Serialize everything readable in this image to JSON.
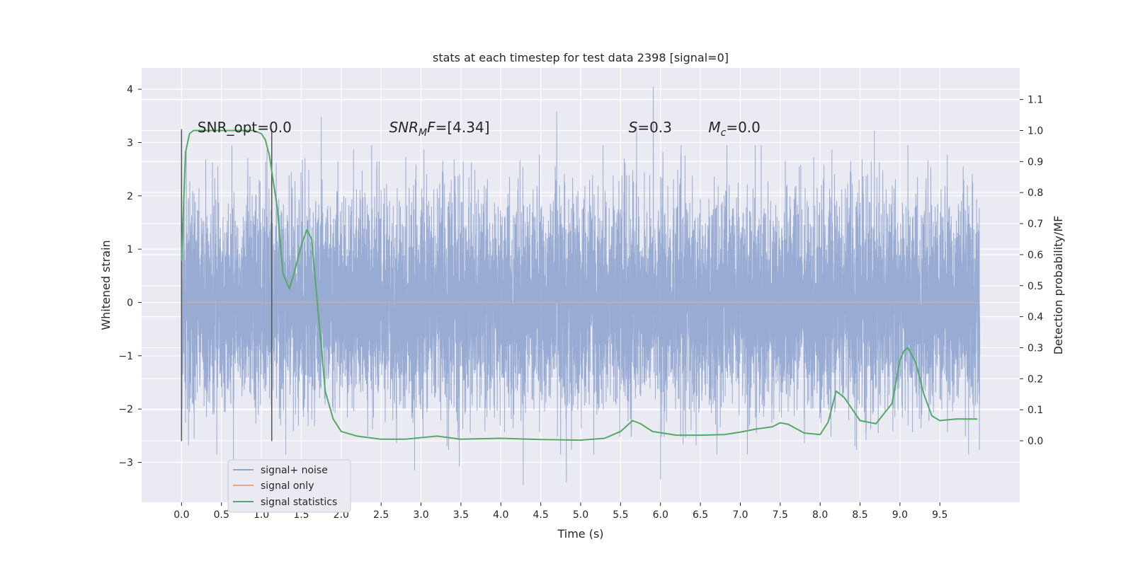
{
  "chart_data": {
    "type": "line",
    "title": "stats at each timestep for test data 2398 [signal=0]",
    "xlabel": "Time (s)",
    "ylabel": "Whitened strain",
    "ylabel_right": "Detection probability/MF",
    "xlim": [
      -0.5,
      10.5
    ],
    "ylim": [
      -3.75,
      4.4
    ],
    "ylim_right": [
      -0.2,
      1.2
    ],
    "x_ticks": [
      0.0,
      0.5,
      1.0,
      1.5,
      2.0,
      2.5,
      3.0,
      3.5,
      4.0,
      4.5,
      5.0,
      5.5,
      6.0,
      6.5,
      7.0,
      7.5,
      8.0,
      8.5,
      9.0,
      9.5
    ],
    "x_tick_labels": [
      "0.0",
      "0.5",
      "1.0",
      "1.5",
      "2.0",
      "2.5",
      "3.0",
      "3.5",
      "4.0",
      "4.5",
      "5.0",
      "5.5",
      "6.0",
      "6.5",
      "7.0",
      "7.5",
      "8.0",
      "8.5",
      "9.0",
      "9.5"
    ],
    "y_ticks": [
      -3,
      -2,
      -1,
      0,
      1,
      2,
      3,
      4
    ],
    "y_tick_labels": [
      "−3",
      "−2",
      "−1",
      "0",
      "1",
      "2",
      "3",
      "4"
    ],
    "y_right_ticks": [
      0.0,
      0.1,
      0.2,
      0.3,
      0.4,
      0.5,
      0.6,
      0.7,
      0.8,
      0.9,
      1.0,
      1.1
    ],
    "y_right_tick_labels": [
      "0.0",
      "0.1",
      "0.2",
      "0.3",
      "0.4",
      "0.5",
      "0.6",
      "0.7",
      "0.8",
      "0.9",
      "1.0",
      "1.1"
    ],
    "grid": true,
    "legend_position": "bottom-left",
    "annotations": [
      {
        "prefix": "SNR_opt=0.0",
        "sub": "",
        "suffix": "",
        "italic": false,
        "x": 0.2
      },
      {
        "prefix": "SNR",
        "sub": "M",
        "suffix": "F=[4.34]",
        "italic": true,
        "x": 2.6
      },
      {
        "prefix": "S",
        "sub": "",
        "suffix": "=0.3",
        "italic": true,
        "x": 5.6
      },
      {
        "prefix": "M",
        "sub": "c",
        "suffix": "=0.0",
        "italic": true,
        "x": 6.6
      }
    ],
    "annotation_y": 3.3,
    "vertical_markers": [
      {
        "x": 0.0,
        "y_range": [
          -2.6,
          3.25
        ]
      },
      {
        "x": 1.13,
        "y_range": [
          -2.6,
          3.25
        ]
      }
    ],
    "series": [
      {
        "name": "signal+ noise",
        "color": "#8fa4cf",
        "kind": "noise",
        "x_range": [
          0.0,
          10.0
        ],
        "sample_rate": 1024,
        "std": 0.95,
        "peaks": [
          {
            "x": 5.91,
            "y": 4.05
          },
          {
            "x": 4.7,
            "y": 3.58
          },
          {
            "x": 1.75,
            "y": 3.48
          },
          {
            "x": 5.7,
            "y": 3.3
          },
          {
            "x": 8.68,
            "y": 3.22
          },
          {
            "x": 9.1,
            "y": 2.95
          },
          {
            "x": 4.82,
            "y": -3.38
          },
          {
            "x": 4.28,
            "y": -3.42
          },
          {
            "x": 6.0,
            "y": -3.32
          },
          {
            "x": 2.92,
            "y": -3.15
          },
          {
            "x": 3.48,
            "y": -3.08
          },
          {
            "x": 0.65,
            "y": -3.1
          }
        ]
      },
      {
        "name": "signal only",
        "color": "#e1a88a",
        "kind": "line",
        "x": [
          0.0,
          10.0
        ],
        "y": [
          0.0,
          0.0
        ]
      },
      {
        "name": "signal statistics",
        "color": "#55a868",
        "kind": "line",
        "axis": "right",
        "x": [
          0.0,
          0.05,
          0.1,
          0.15,
          0.2,
          0.3,
          0.5,
          0.75,
          0.9,
          1.0,
          1.05,
          1.1,
          1.2,
          1.27,
          1.35,
          1.4,
          1.5,
          1.57,
          1.63,
          1.7,
          1.8,
          1.9,
          2.0,
          2.2,
          2.5,
          2.8,
          3.2,
          3.5,
          4.0,
          4.5,
          5.0,
          5.3,
          5.5,
          5.65,
          5.75,
          5.9,
          6.2,
          6.5,
          6.8,
          7.0,
          7.2,
          7.4,
          7.5,
          7.6,
          7.8,
          8.0,
          8.1,
          8.2,
          8.3,
          8.5,
          8.7,
          8.9,
          9.0,
          9.05,
          9.1,
          9.2,
          9.3,
          9.4,
          9.5,
          9.7,
          9.97
        ],
        "y": [
          0.58,
          0.93,
          0.99,
          1.0,
          1.0,
          1.0,
          1.0,
          1.0,
          1.0,
          0.99,
          0.97,
          0.92,
          0.75,
          0.54,
          0.49,
          0.53,
          0.63,
          0.68,
          0.65,
          0.45,
          0.16,
          0.07,
          0.03,
          0.015,
          0.005,
          0.005,
          0.015,
          0.005,
          0.008,
          0.004,
          0.002,
          0.008,
          0.03,
          0.065,
          0.055,
          0.03,
          0.018,
          0.018,
          0.02,
          0.028,
          0.038,
          0.045,
          0.058,
          0.053,
          0.025,
          0.02,
          0.06,
          0.16,
          0.14,
          0.065,
          0.055,
          0.12,
          0.26,
          0.29,
          0.3,
          0.25,
          0.15,
          0.08,
          0.065,
          0.07,
          0.07
        ]
      }
    ]
  }
}
